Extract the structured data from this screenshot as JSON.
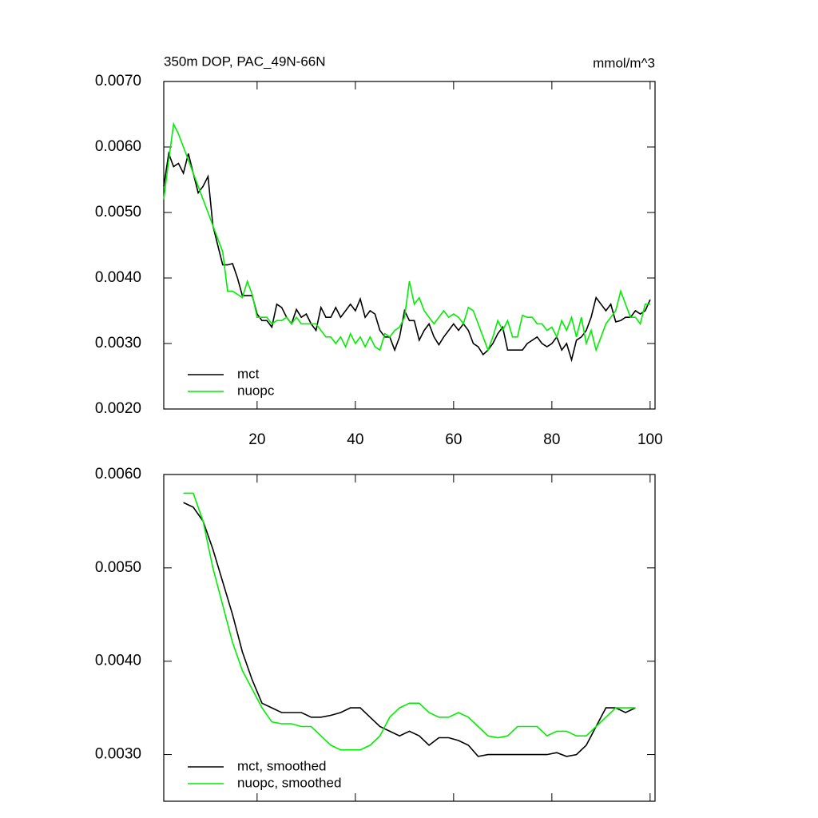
{
  "chart_data": [
    {
      "type": "line",
      "title": "350m DOP, PAC_49N-66N",
      "subtitle": "mmol/m^3",
      "x": [
        1,
        2,
        3,
        4,
        5,
        6,
        7,
        8,
        9,
        10,
        11,
        12,
        13,
        14,
        15,
        16,
        17,
        18,
        19,
        20,
        21,
        22,
        23,
        24,
        25,
        26,
        27,
        28,
        29,
        30,
        31,
        32,
        33,
        34,
        35,
        36,
        37,
        38,
        39,
        40,
        41,
        42,
        43,
        44,
        45,
        46,
        47,
        48,
        49,
        50,
        51,
        52,
        53,
        54,
        55,
        56,
        57,
        58,
        59,
        60,
        61,
        62,
        63,
        64,
        65,
        66,
        67,
        68,
        69,
        70,
        71,
        72,
        73,
        74,
        75,
        76,
        77,
        78,
        79,
        80,
        81,
        82,
        83,
        84,
        85,
        86,
        87,
        88,
        89,
        90,
        91,
        92,
        93,
        94,
        95,
        96,
        97,
        98,
        99,
        100
      ],
      "series": [
        {
          "name": "mct",
          "color": "#000000",
          "values": [
            0.0054,
            0.0059,
            0.0057,
            0.00575,
            0.0056,
            0.0059,
            0.0056,
            0.0053,
            0.0054,
            0.00555,
            0.0048,
            0.0045,
            0.0042,
            0.0042,
            0.00422,
            0.004,
            0.00373,
            0.00373,
            0.00373,
            0.00345,
            0.00335,
            0.00335,
            0.00325,
            0.0036,
            0.00355,
            0.0034,
            0.0033,
            0.00352,
            0.0034,
            0.00345,
            0.0033,
            0.0032,
            0.00355,
            0.0034,
            0.0034,
            0.00355,
            0.0034,
            0.0035,
            0.0036,
            0.0035,
            0.00368,
            0.0034,
            0.0035,
            0.00345,
            0.0032,
            0.0031,
            0.0031,
            0.0029,
            0.0031,
            0.0035,
            0.00335,
            0.00335,
            0.00305,
            0.0032,
            0.0033,
            0.0031,
            0.00298,
            0.0031,
            0.0032,
            0.0033,
            0.0032,
            0.0033,
            0.0032,
            0.003,
            0.00295,
            0.00283,
            0.0029,
            0.003,
            0.00315,
            0.00325,
            0.0029,
            0.0029,
            0.0029,
            0.0029,
            0.003,
            0.00305,
            0.0031,
            0.003,
            0.00295,
            0.003,
            0.0031,
            0.0029,
            0.003,
            0.00275,
            0.00305,
            0.0031,
            0.0032,
            0.0034,
            0.0037,
            0.0036,
            0.0035,
            0.0036,
            0.00333,
            0.00335,
            0.0034,
            0.0034,
            0.0035,
            0.00345,
            0.0035,
            0.00367
          ]
        },
        {
          "name": "nuopc",
          "color": "#00ee00",
          "values": [
            0.0052,
            0.0058,
            0.00635,
            0.0062,
            0.006,
            0.0058,
            0.0056,
            0.0054,
            0.0052,
            0.005,
            0.0048,
            0.0046,
            0.0044,
            0.0038,
            0.0038,
            0.00375,
            0.0037,
            0.00395,
            0.00375,
            0.0034,
            0.0034,
            0.0034,
            0.0033,
            0.00335,
            0.00335,
            0.0034,
            0.0033,
            0.0034,
            0.0033,
            0.0033,
            0.0033,
            0.0033,
            0.0032,
            0.0031,
            0.0031,
            0.003,
            0.0031,
            0.00295,
            0.00315,
            0.003,
            0.0031,
            0.00295,
            0.0031,
            0.00295,
            0.0029,
            0.00315,
            0.0031,
            0.0032,
            0.00325,
            0.0034,
            0.00395,
            0.0036,
            0.0037,
            0.0035,
            0.0034,
            0.0033,
            0.0034,
            0.0035,
            0.0034,
            0.00345,
            0.0034,
            0.0033,
            0.00355,
            0.0035,
            0.0033,
            0.0031,
            0.0029,
            0.0031,
            0.00335,
            0.0032,
            0.00335,
            0.0031,
            0.0031,
            0.00343,
            0.0034,
            0.0034,
            0.0033,
            0.0033,
            0.0032,
            0.00325,
            0.0031,
            0.00335,
            0.0032,
            0.0034,
            0.0031,
            0.0034,
            0.003,
            0.0032,
            0.0029,
            0.0031,
            0.0033,
            0.0034,
            0.0035,
            0.0038,
            0.0036,
            0.0034,
            0.0034,
            0.0033,
            0.0036,
            0.0036
          ]
        }
      ],
      "xlim": [
        1,
        101
      ],
      "xticks": [
        20,
        40,
        60,
        80,
        100
      ],
      "ylim": [
        0.002,
        0.007
      ],
      "yticks": [
        {
          "value": 0.002,
          "label": "0.0020"
        },
        {
          "value": 0.003,
          "label": "0.0030"
        },
        {
          "value": 0.004,
          "label": "0.0040"
        },
        {
          "value": 0.005,
          "label": "0.0050"
        },
        {
          "value": 0.006,
          "label": "0.0060"
        },
        {
          "value": 0.007,
          "label": "0.0070"
        }
      ],
      "legend": "lower left"
    },
    {
      "type": "line",
      "x": [
        5,
        7,
        9,
        11,
        13,
        15,
        17,
        19,
        21,
        23,
        25,
        27,
        29,
        31,
        33,
        35,
        37,
        39,
        41,
        43,
        45,
        47,
        49,
        51,
        53,
        55,
        57,
        59,
        61,
        63,
        65,
        67,
        69,
        71,
        73,
        75,
        77,
        79,
        81,
        83,
        85,
        87,
        89,
        91,
        93,
        95,
        97
      ],
      "series": [
        {
          "name": "mct, smoothed",
          "color": "#000000",
          "values": [
            0.0057,
            0.00565,
            0.0055,
            0.0052,
            0.00485,
            0.0045,
            0.0041,
            0.0038,
            0.00355,
            0.0035,
            0.00345,
            0.00345,
            0.00345,
            0.0034,
            0.0034,
            0.00342,
            0.00345,
            0.0035,
            0.0035,
            0.0034,
            0.0033,
            0.00325,
            0.0032,
            0.00325,
            0.0032,
            0.0031,
            0.00318,
            0.00318,
            0.00315,
            0.0031,
            0.00298,
            0.003,
            0.003,
            0.003,
            0.003,
            0.003,
            0.003,
            0.003,
            0.00302,
            0.00298,
            0.003,
            0.0031,
            0.0033,
            0.0035,
            0.0035,
            0.00345,
            0.0035
          ]
        },
        {
          "name": "nuopc, smoothed",
          "color": "#00ee00",
          "values": [
            0.0058,
            0.0058,
            0.0055,
            0.005,
            0.0046,
            0.0042,
            0.0039,
            0.0037,
            0.0035,
            0.00335,
            0.00333,
            0.00333,
            0.0033,
            0.0033,
            0.0032,
            0.0031,
            0.00305,
            0.00305,
            0.00305,
            0.0031,
            0.0032,
            0.0034,
            0.0035,
            0.00355,
            0.00355,
            0.00345,
            0.0034,
            0.0034,
            0.00345,
            0.0034,
            0.0033,
            0.0032,
            0.00318,
            0.0032,
            0.0033,
            0.0033,
            0.0033,
            0.0032,
            0.00325,
            0.00325,
            0.0032,
            0.0032,
            0.0033,
            0.0034,
            0.0035,
            0.0035,
            0.0035
          ]
        }
      ],
      "xlim": [
        1,
        101
      ],
      "xticks": [
        20,
        40,
        60,
        80,
        100
      ],
      "xticklabels": false,
      "ylim": [
        0.0025,
        0.006
      ],
      "yticks": [
        {
          "value": 0.003,
          "label": "0.0030"
        },
        {
          "value": 0.004,
          "label": "0.0040"
        },
        {
          "value": 0.005,
          "label": "0.0050"
        },
        {
          "value": 0.006,
          "label": "0.0060"
        }
      ],
      "legend": "lower left"
    }
  ]
}
